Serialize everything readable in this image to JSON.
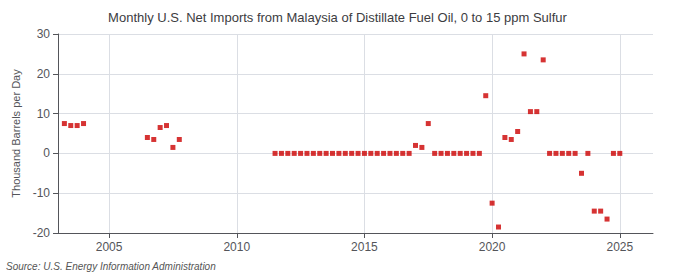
{
  "chart_data": {
    "type": "scatter",
    "title": "Monthly U.S. Net Imports from Malaysia of Distillate Fuel Oil, 0 to 15 ppm Sulfur",
    "ylabel": "Thousand Barrels per Day",
    "annotations": [
      "Source: U.S. Energy Information Administration"
    ],
    "color": "#cc0000",
    "marker": "square",
    "grid": true,
    "xlim": [
      2003.0,
      2026.3
    ],
    "xticks": [
      2005,
      2010,
      2015,
      2020,
      2025
    ],
    "ylim": [
      -20,
      30
    ],
    "yticks": [
      -20,
      -10,
      0,
      10,
      20,
      30
    ],
    "x": [
      2003.25,
      2003.5,
      2003.75,
      2004.0,
      2006.5,
      2006.75,
      2007.0,
      2007.25,
      2007.5,
      2007.75,
      2011.5,
      2011.75,
      2012.0,
      2012.25,
      2012.5,
      2012.75,
      2013.0,
      2013.25,
      2013.5,
      2013.75,
      2014.0,
      2014.25,
      2014.5,
      2014.75,
      2015.0,
      2015.25,
      2015.5,
      2015.75,
      2016.0,
      2016.25,
      2016.5,
      2016.75,
      2017.0,
      2017.25,
      2017.5,
      2017.75,
      2018.0,
      2018.25,
      2018.5,
      2018.75,
      2019.0,
      2019.25,
      2019.5,
      2019.75,
      2020.0,
      2020.25,
      2020.5,
      2020.75,
      2021.0,
      2021.25,
      2021.5,
      2021.75,
      2022.0,
      2022.25,
      2022.5,
      2022.75,
      2023.0,
      2023.25,
      2023.5,
      2023.75,
      2024.0,
      2024.25,
      2024.5,
      2024.75,
      2025.0
    ],
    "values": [
      7.5,
      7.0,
      7.0,
      7.5,
      4.0,
      3.5,
      6.5,
      7.0,
      1.5,
      3.5,
      0.0,
      0.0,
      0.0,
      0.0,
      0.0,
      0.0,
      0.0,
      0.0,
      0.0,
      0.0,
      0.0,
      0.0,
      0.0,
      0.0,
      0.0,
      0.0,
      0.0,
      0.0,
      0.0,
      0.0,
      0.0,
      0.0,
      2.0,
      1.5,
      7.5,
      0.0,
      0.0,
      0.0,
      0.0,
      0.0,
      0.0,
      0.0,
      0.0,
      14.5,
      -12.5,
      -18.5,
      4.0,
      3.5,
      5.5,
      25.0,
      10.5,
      10.5,
      23.5,
      0.0,
      0.0,
      0.0,
      0.0,
      0.0,
      -5.0,
      0.0,
      -14.5,
      -14.5,
      -16.5,
      0.0,
      0.0
    ]
  }
}
